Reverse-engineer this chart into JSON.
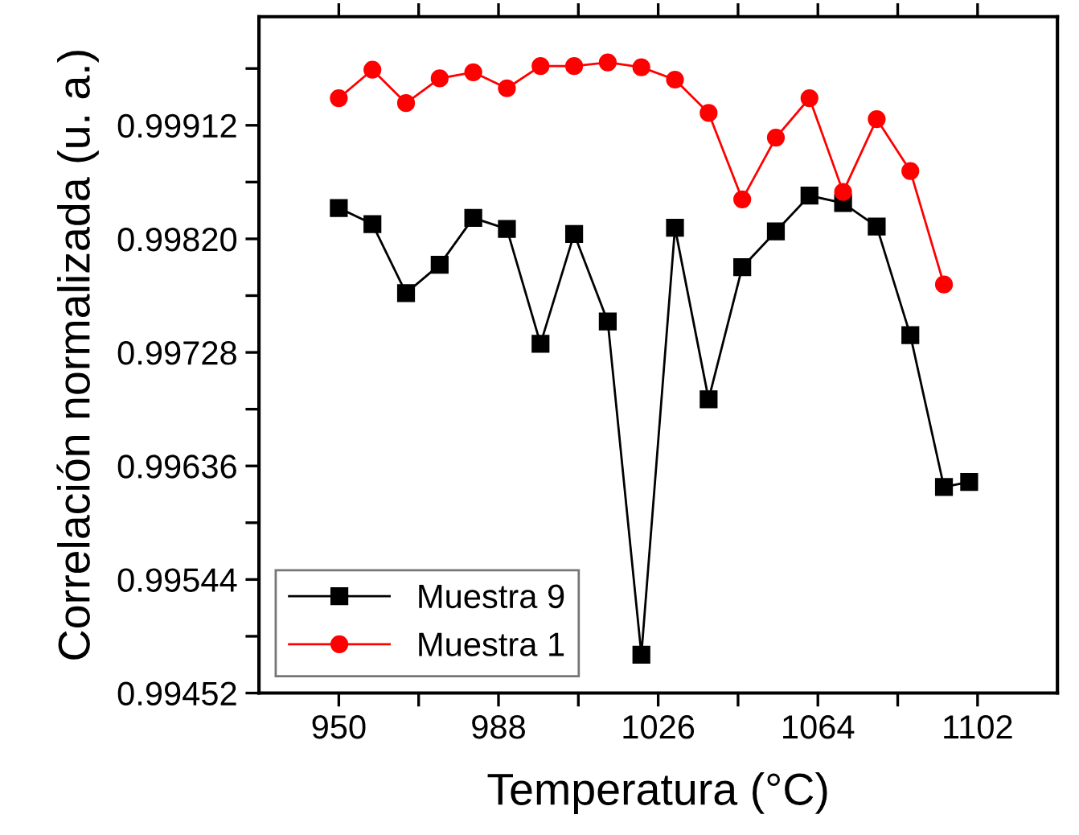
{
  "chart_data": {
    "type": "line",
    "xlabel": "Temperatura (°C)",
    "ylabel": "Correlación normalizada (u. a.)",
    "series": [
      {
        "name": "Muestra 9",
        "color": "#000000",
        "marker": "square",
        "x": [
          950,
          958,
          966,
          974,
          982,
          990,
          998,
          1006,
          1014,
          1022,
          1030,
          1038,
          1046,
          1054,
          1062,
          1070,
          1078,
          1086,
          1094,
          1100
        ],
        "values": [
          0.99845,
          0.99832,
          0.99776,
          0.99799,
          0.99837,
          0.99828,
          0.99735,
          0.99824,
          0.99753,
          0.99483,
          0.99829,
          0.9969,
          0.99797,
          0.99826,
          0.99855,
          0.99849,
          0.9983,
          0.99742,
          0.99619,
          0.99623
        ]
      },
      {
        "name": "Muestra 1",
        "color": "#ff0000",
        "marker": "circle",
        "x": [
          950,
          958,
          966,
          974,
          982,
          990,
          998,
          1006,
          1014,
          1022,
          1030,
          1038,
          1046,
          1054,
          1062,
          1070,
          1078,
          1086,
          1094
        ],
        "values": [
          0.99934,
          0.99957,
          0.9993,
          0.9995,
          0.99955,
          0.99942,
          0.9996,
          0.9996,
          0.99963,
          0.99959,
          0.99949,
          0.99922,
          0.99852,
          0.99902,
          0.99934,
          0.99858,
          0.99917,
          0.99875,
          0.99783
        ]
      }
    ],
    "xlim": [
      931,
      1121
    ],
    "xticks": [
      950,
      {
        "value": 969,
        "label": null
      },
      988,
      {
        "value": 1007,
        "label": null
      },
      1026,
      {
        "value": 1045,
        "label": null
      },
      1064,
      {
        "value": 1083,
        "label": null
      },
      1102
    ],
    "ylim": [
      0.99452,
      1.0
    ],
    "yticks": [
      {
        "value": 0.99452,
        "label": "0.99452"
      },
      {
        "value": 0.99498,
        "label": null
      },
      {
        "value": 0.99544,
        "label": "0.99544"
      },
      {
        "value": 0.9959,
        "label": null
      },
      {
        "value": 0.99636,
        "label": "0.99636"
      },
      {
        "value": 0.99682,
        "label": null
      },
      {
        "value": 0.99728,
        "label": "0.99728"
      },
      {
        "value": 0.99774,
        "label": null
      },
      {
        "value": 0.9982,
        "label": "0.99820"
      },
      {
        "value": 0.99866,
        "label": null
      },
      {
        "value": 0.99912,
        "label": "0.99912"
      },
      {
        "value": 0.99958,
        "label": null
      }
    ],
    "grid": false,
    "legend": "bottom left",
    "line_style": "solid"
  }
}
